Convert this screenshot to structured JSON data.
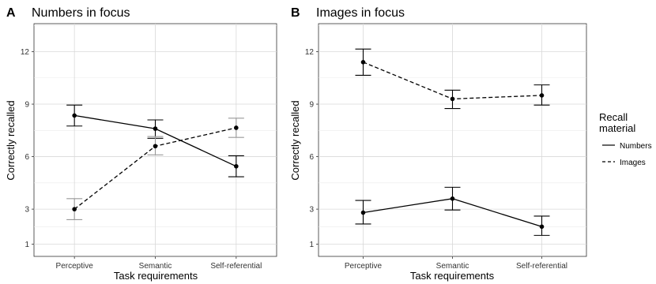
{
  "chart_data": [
    {
      "type": "line",
      "panel_letter": "A",
      "title": "Numbers in focus",
      "xlabel": "Task requirements",
      "ylabel": "Correctly recalled",
      "categories": [
        "Perceptive",
        "Semantic",
        "Self-referential"
      ],
      "yticks": [
        1,
        3,
        6,
        9,
        12
      ],
      "ylim": [
        0.3,
        13.6
      ],
      "grid": true,
      "series": [
        {
          "name": "Numbers",
          "line_style": "solid",
          "color": "#000000",
          "values": [
            8.35,
            7.6,
            5.45
          ],
          "ci_low": [
            7.75,
            7.05,
            4.85
          ],
          "ci_high": [
            8.95,
            8.1,
            6.05
          ]
        },
        {
          "name": "Images",
          "line_style": "dashed",
          "color": "#000000",
          "errorbar_color": "#999999",
          "values": [
            3.0,
            6.6,
            7.65
          ],
          "ci_low": [
            2.4,
            6.1,
            7.1
          ],
          "ci_high": [
            3.6,
            7.15,
            8.2
          ]
        }
      ]
    },
    {
      "type": "line",
      "panel_letter": "B",
      "title": "Images in focus",
      "xlabel": "Task requirements",
      "ylabel": "Correctly recalled",
      "categories": [
        "Perceptive",
        "Semantic",
        "Self-referential"
      ],
      "yticks": [
        1,
        3,
        6,
        9,
        12
      ],
      "ylim": [
        0.3,
        13.6
      ],
      "grid": true,
      "series": [
        {
          "name": "Numbers",
          "line_style": "solid",
          "color": "#000000",
          "values": [
            2.8,
            3.6,
            2.0
          ],
          "ci_low": [
            2.15,
            2.95,
            1.5
          ],
          "ci_high": [
            3.5,
            4.25,
            2.6
          ]
        },
        {
          "name": "Images",
          "line_style": "dashed",
          "color": "#000000",
          "values": [
            11.4,
            9.3,
            9.5
          ],
          "ci_low": [
            10.65,
            8.75,
            8.95
          ],
          "ci_high": [
            12.15,
            9.8,
            10.1
          ]
        }
      ]
    }
  ],
  "legend": {
    "title_line1": "Recall",
    "title_line2": "material",
    "placement": "right",
    "items": [
      {
        "label": "Numbers",
        "line_style": "solid"
      },
      {
        "label": "Images",
        "line_style": "dashed"
      }
    ]
  }
}
